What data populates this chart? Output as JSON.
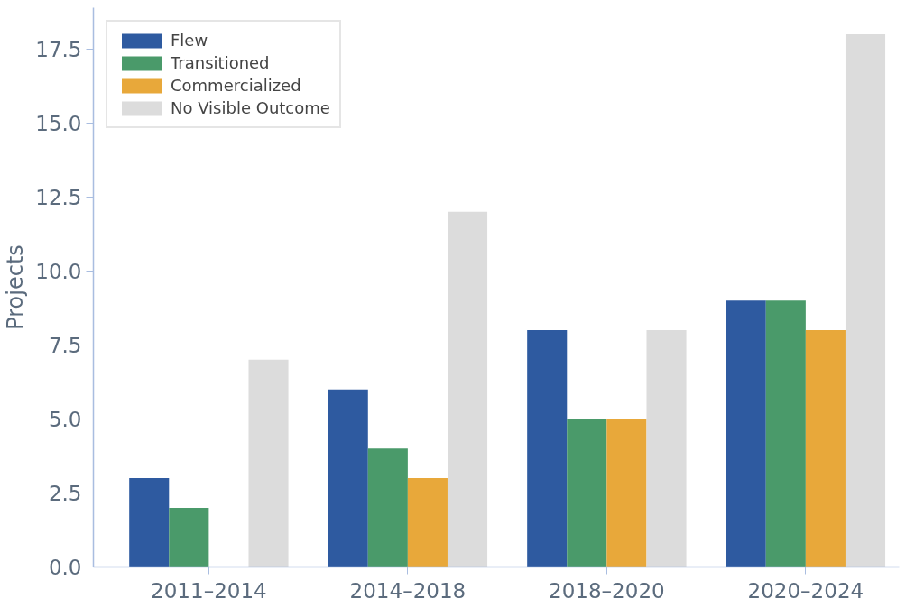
{
  "chart_data": {
    "type": "bar",
    "ylabel": "Projects",
    "categories": [
      "2011–2014",
      "2014–2018",
      "2018–2020",
      "2020–2024"
    ],
    "series": [
      {
        "name": "Flew",
        "color": "#2e5aa0",
        "values": [
          3,
          6,
          8,
          9
        ]
      },
      {
        "name": "Transitioned",
        "color": "#4a9a6a",
        "values": [
          2,
          4,
          5,
          9
        ]
      },
      {
        "name": "Commercialized",
        "color": "#e8a83a",
        "values": [
          0,
          3,
          5,
          8
        ]
      },
      {
        "name": "No Visible Outcome",
        "color": "#dcdcdc",
        "values": [
          7,
          12,
          8,
          18
        ]
      }
    ],
    "ylim": [
      0,
      18.9
    ],
    "yticks": [
      {
        "value": 0,
        "label": "0.0"
      },
      2.5,
      {
        "value": 5,
        "label": "5.0"
      },
      7.5,
      {
        "value": 10,
        "label": "10.0"
      },
      12.5,
      {
        "value": 15,
        "label": "15.0"
      },
      17.5
    ],
    "grid": false,
    "legend": "top left"
  }
}
